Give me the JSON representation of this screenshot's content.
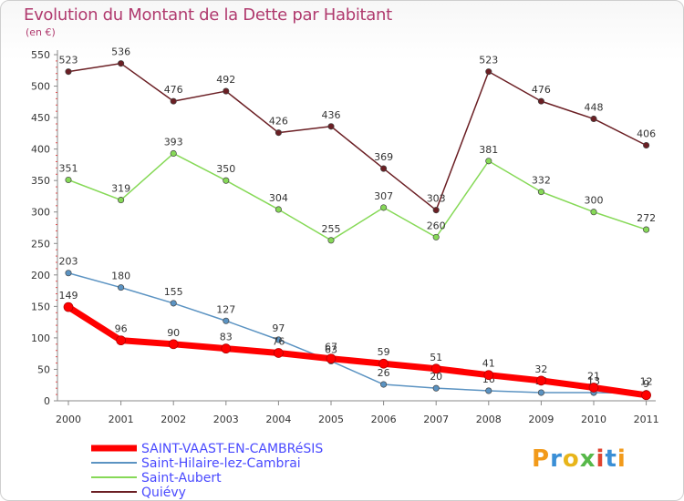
{
  "title": "Evolution du Montant de la Dette par Habitant",
  "subtitle": "(en €)",
  "logo": "Proxiti",
  "chart_data": {
    "type": "line",
    "x": [
      "2000",
      "2001",
      "2002",
      "2003",
      "2004",
      "2005",
      "2006",
      "2007",
      "2008",
      "2009",
      "2010",
      "2011"
    ],
    "ylim": [
      0,
      550
    ],
    "yticks": [
      0,
      50,
      100,
      150,
      200,
      250,
      300,
      350,
      400,
      450,
      500,
      550
    ],
    "grid": false,
    "legend_position": "bottom-left",
    "series": [
      {
        "name": "Quiévy",
        "color": "#6b1f24",
        "width": 1.5,
        "values": [
          523,
          536,
          476,
          492,
          426,
          436,
          369,
          303,
          523,
          476,
          448,
          406
        ]
      },
      {
        "name": "Saint-Aubert",
        "color": "#86d957",
        "width": 1.5,
        "values": [
          351,
          319,
          393,
          350,
          304,
          255,
          307,
          260,
          381,
          332,
          300,
          272
        ]
      },
      {
        "name": "Saint-Hilaire-lez-Cambrai",
        "color": "#5b93c2",
        "width": 1.5,
        "values": [
          203,
          180,
          155,
          127,
          97,
          63,
          26,
          20,
          16,
          13,
          13,
          12
        ]
      },
      {
        "name": "SAINT-VAAST-EN-CAMBRéSIS",
        "color": "#ff0000",
        "width": 7,
        "values": [
          149,
          96,
          90,
          83,
          76,
          67,
          59,
          51,
          41,
          32,
          21,
          9
        ]
      }
    ]
  }
}
